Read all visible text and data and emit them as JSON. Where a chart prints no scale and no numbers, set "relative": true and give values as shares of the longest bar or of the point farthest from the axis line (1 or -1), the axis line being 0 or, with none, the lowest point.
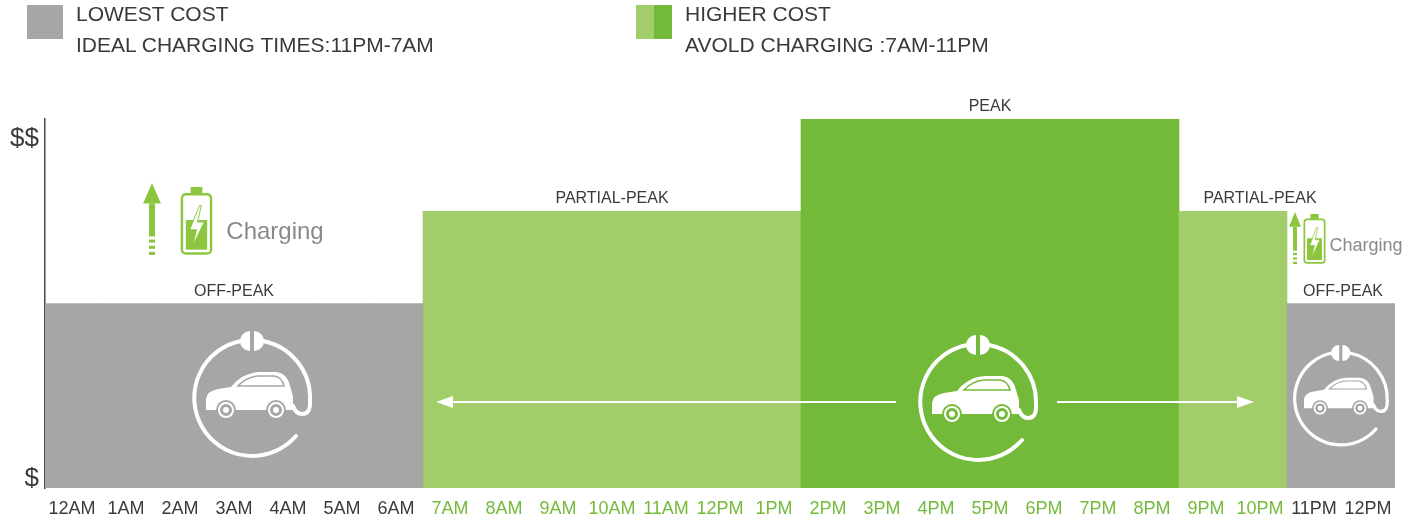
{
  "chart_data": {
    "type": "bar",
    "relative": true,
    "categories": [
      "12AM",
      "1AM",
      "2AM",
      "3AM",
      "4AM",
      "5AM",
      "6AM",
      "7AM",
      "8AM",
      "9AM",
      "10AM",
      "11AM",
      "12PM",
      "1PM",
      "2PM",
      "3PM",
      "4PM",
      "5PM",
      "6PM",
      "7PM",
      "8PM",
      "9PM",
      "10PM",
      "11PM",
      "12PM"
    ],
    "series": [
      {
        "name": "LOWEST COST\nIDEAL CHARGING TIMES:11PM-7AM",
        "color": "#a6a6a6",
        "values": [
          0.5,
          0.5,
          0.5,
          0.5,
          0.5,
          0.5,
          0.5,
          null,
          null,
          null,
          null,
          null,
          null,
          null,
          null,
          null,
          null,
          null,
          null,
          null,
          null,
          null,
          null,
          0.5,
          0.5
        ]
      },
      {
        "name": "HIGHER COST\nAVOLD CHARGING :7AM-11PM",
        "color": "#74ba3a",
        "colors": [
          null,
          null,
          null,
          null,
          null,
          null,
          null,
          "#a2cd6b",
          "#a2cd6b",
          "#a2cd6b",
          "#a2cd6b",
          "#a2cd6b",
          "#a2cd6b",
          "#a2cd6b",
          "#74ba3a",
          "#74ba3a",
          "#74ba3a",
          "#74ba3a",
          "#74ba3a",
          "#74ba3a",
          "#74ba3a",
          "#a2cd6b",
          "#a2cd6b",
          null,
          null
        ],
        "values": [
          null,
          null,
          null,
          null,
          null,
          null,
          null,
          0.75,
          0.75,
          0.75,
          0.75,
          0.75,
          0.75,
          0.75,
          1,
          1,
          1,
          1,
          1,
          1,
          1,
          0.75,
          0.75,
          null,
          null
        ]
      }
    ],
    "legend": "top",
    "annotations": [
      "$$",
      "$",
      {
        "text": "OFF-PEAK",
        "x": "3AM",
        "y": 0.5
      },
      {
        "text": "PARTIAL-PEAK",
        "x": "10AM",
        "y": 0.75
      },
      {
        "text": "PEAK",
        "x": "5PM",
        "y": 1
      },
      {
        "text": "PARTIAL-PEAK",
        "x": "10PM",
        "y": 0.75
      },
      "OFF-PEAK",
      "Charging",
      "Charging"
    ]
  }
}
